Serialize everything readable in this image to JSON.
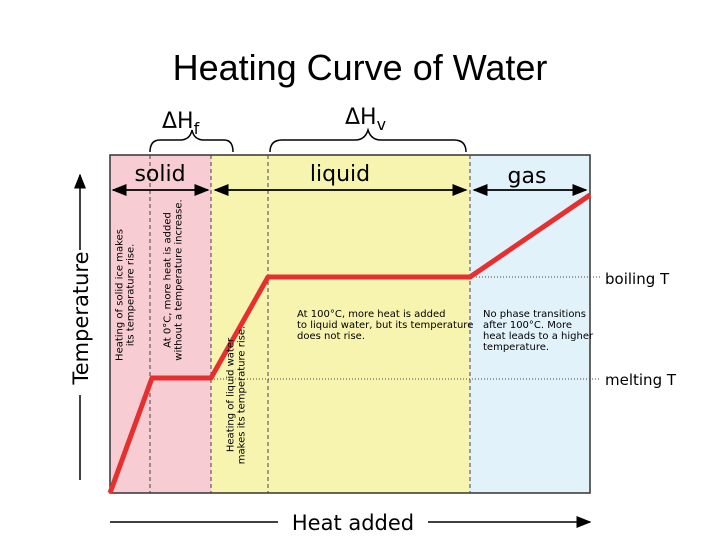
{
  "title": "Heating Curve of Water",
  "enthalpy": [
    {
      "symbol": "ΔH",
      "subscript": "f"
    },
    {
      "symbol": "ΔH",
      "subscript": "v"
    }
  ],
  "phases": [
    "solid",
    "liquid",
    "gas"
  ],
  "axes": {
    "y": "Temperature",
    "x": "Heat added"
  },
  "levels": [
    "boiling T",
    "melting T"
  ],
  "notes": {
    "solid_heating": [
      "Heating of solid ice makes",
      "its temperature rise."
    ],
    "melting": [
      "At 0°C, more heat is added",
      "without a temperature increase."
    ],
    "liquid_heating": [
      "Heating of liquid water",
      "makes its temperature rise."
    ],
    "boiling": [
      "At 100°C, more heat is added",
      "to liquid water, but its temperature",
      "does not rise."
    ],
    "gas_heating": [
      "No phase transitions",
      "after 100°C. More",
      "heat leads to a higher",
      "temperature."
    ]
  }
}
